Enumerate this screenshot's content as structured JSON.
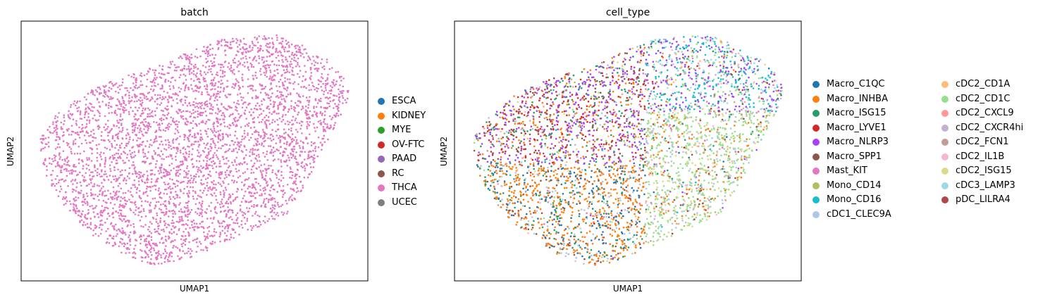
{
  "chart_data": [
    {
      "type": "scatter",
      "title": "batch",
      "xlabel": "UMAP1",
      "ylabel": "UMAP2",
      "grid": false,
      "legend_placement": "right",
      "colored_by": "THCA",
      "legend": [
        {
          "name": "ESCA",
          "color": "#1f77b4"
        },
        {
          "name": "KIDNEY",
          "color": "#ff7f0e"
        },
        {
          "name": "MYE",
          "color": "#2ca02c"
        },
        {
          "name": "OV-FTC",
          "color": "#d62728"
        },
        {
          "name": "PAAD",
          "color": "#9467bd"
        },
        {
          "name": "RC",
          "color": "#8c564b"
        },
        {
          "name": "THCA",
          "color": "#e377c2"
        },
        {
          "name": "UCEC",
          "color": "#7f7f7f"
        }
      ]
    },
    {
      "type": "scatter",
      "title": "cell_type",
      "xlabel": "UMAP1",
      "ylabel": "UMAP2",
      "grid": false,
      "legend_placement": "right",
      "legend": [
        {
          "name": "Macro_C1QC",
          "color": "#1f77b4"
        },
        {
          "name": "Macro_INHBA",
          "color": "#ff7f0e"
        },
        {
          "name": "Macro_ISG15",
          "color": "#279e68"
        },
        {
          "name": "Macro_LYVE1",
          "color": "#d62728"
        },
        {
          "name": "Macro_NLRP3",
          "color": "#aa40fc"
        },
        {
          "name": "Macro_SPP1",
          "color": "#8c564b"
        },
        {
          "name": "Mast_KIT",
          "color": "#e377c2"
        },
        {
          "name": "Mono_CD14",
          "color": "#b5bd61"
        },
        {
          "name": "Mono_CD16",
          "color": "#17becf"
        },
        {
          "name": "cDC1_CLEC9A",
          "color": "#aec7e8"
        },
        {
          "name": "cDC2_CD1A",
          "color": "#ffbb78"
        },
        {
          "name": "cDC2_CD1C",
          "color": "#98df8a"
        },
        {
          "name": "cDC2_CXCL9",
          "color": "#ff9896"
        },
        {
          "name": "cDC2_CXCR4hi",
          "color": "#c5b0d5"
        },
        {
          "name": "cDC2_FCN1",
          "color": "#c49c94"
        },
        {
          "name": "cDC2_IL1B",
          "color": "#f7b6d2"
        },
        {
          "name": "cDC2_ISG15",
          "color": "#dbdb8d"
        },
        {
          "name": "cDC3_LAMP3",
          "color": "#9edae5"
        },
        {
          "name": "pDC_LILRA4",
          "color": "#ad494a"
        }
      ]
    }
  ]
}
